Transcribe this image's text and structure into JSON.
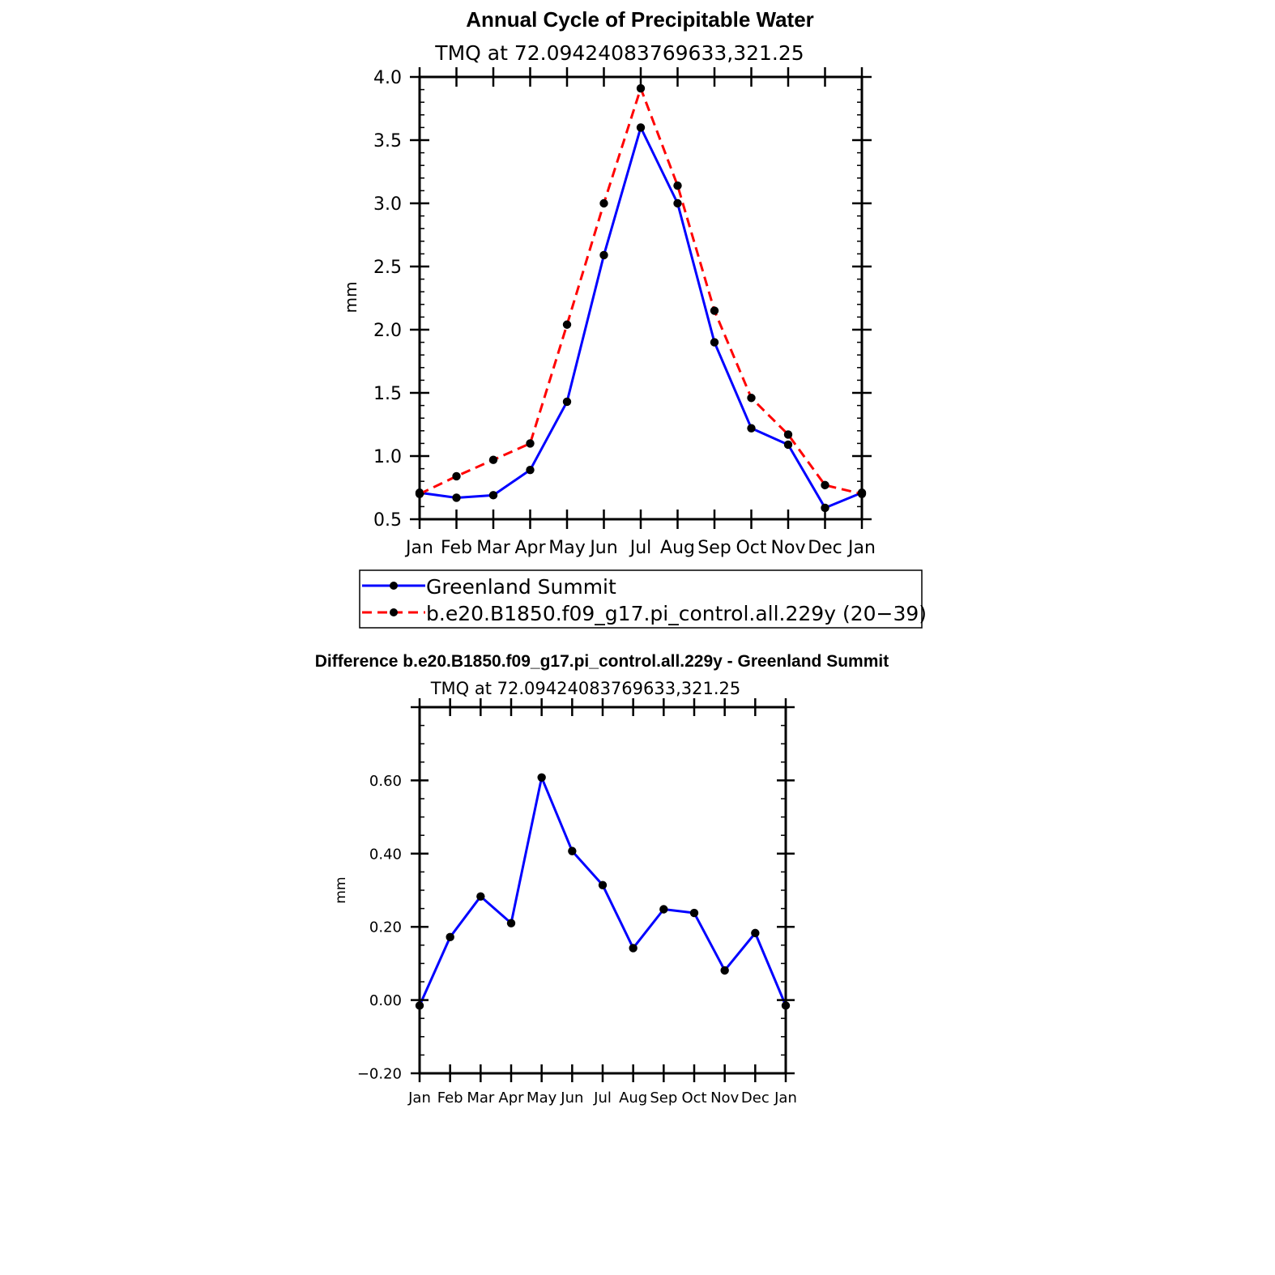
{
  "colors": {
    "obs": "#0000ff",
    "model": "#ff0000",
    "diff": "#0000ff",
    "marker": "#000000",
    "axis": "#000000"
  },
  "chart_data": [
    {
      "type": "line",
      "title": "Annual Cycle of Precipitable Water",
      "subtitle": "TMQ at 72.09424083769633,321.25",
      "xlabel": "",
      "ylabel": "mm",
      "categories": [
        "Jan",
        "Feb",
        "Mar",
        "Apr",
        "May",
        "Jun",
        "Jul",
        "Aug",
        "Sep",
        "Oct",
        "Nov",
        "Dec",
        "Jan"
      ],
      "ylim": [
        0.5,
        4.0
      ],
      "yticks": [
        0.5,
        1.0,
        1.5,
        2.0,
        2.5,
        3.0,
        3.5,
        4.0
      ],
      "ytick_labels": [
        "0.5",
        "1.0",
        "1.5",
        "2.0",
        "2.5",
        "3.0",
        "3.5",
        "4.0"
      ],
      "legend": "bottom",
      "series": [
        {
          "name": "Greenland Summit",
          "style": "solid",
          "values": [
            0.71,
            0.67,
            0.69,
            0.89,
            1.43,
            2.59,
            3.6,
            3.0,
            1.9,
            1.22,
            1.09,
            0.59,
            0.71
          ]
        },
        {
          "name": "b.e20.B1850.f09_g17.pi_control.all.229y (20−39)",
          "style": "dashed",
          "values": [
            0.7,
            0.84,
            0.97,
            1.1,
            2.04,
            3.0,
            3.91,
            3.14,
            2.15,
            1.46,
            1.17,
            0.77,
            0.7
          ]
        }
      ]
    },
    {
      "type": "line",
      "title": "Difference b.e20.B1850.f09_g17.pi_control.all.229y - Greenland Summit",
      "subtitle": "TMQ at 72.09424083769633,321.25",
      "xlabel": "",
      "ylabel": "mm",
      "categories": [
        "Jan",
        "Feb",
        "Mar",
        "Apr",
        "May",
        "Jun",
        "Jul",
        "Aug",
        "Sep",
        "Oct",
        "Nov",
        "Dec",
        "Jan"
      ],
      "ylim": [
        -0.2,
        0.8
      ],
      "yticks": [
        -0.2,
        0.0,
        0.2,
        0.4,
        0.6
      ],
      "ytick_labels": [
        "−0.20",
        "0.00",
        "0.20",
        "0.40",
        "0.60"
      ],
      "series": [
        {
          "values": [
            -0.015,
            0.172,
            0.283,
            0.21,
            0.608,
            0.407,
            0.314,
            0.142,
            0.248,
            0.238,
            0.081,
            0.183,
            -0.015
          ]
        }
      ]
    }
  ]
}
